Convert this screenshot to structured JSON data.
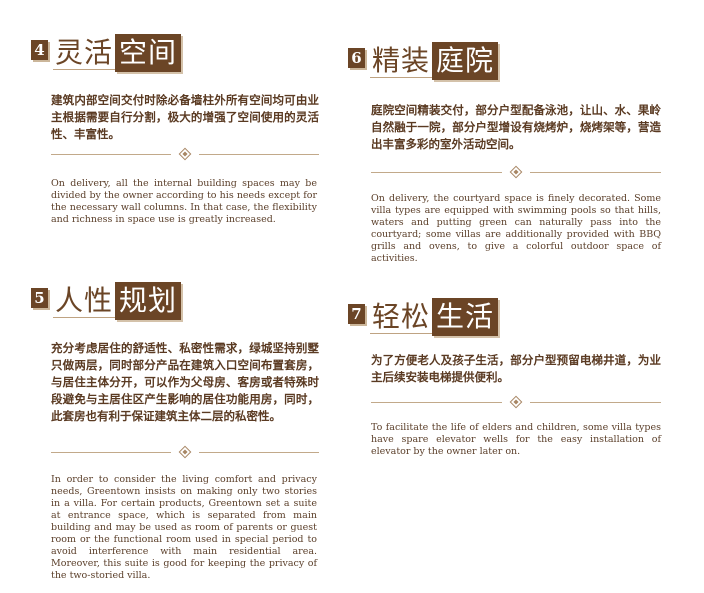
{
  "sections": [
    {
      "number": "4",
      "title_plain": "灵活",
      "title_boxed": "空间",
      "zh": "建筑内部空间交付时除必备墙柱外所有空间均可由业主根据需要自行分割，极大的增强了空间使用的灵活性、丰富性。",
      "en": "On delivery, all the internal building spaces may be divided by the owner according to his needs except for the necessary wall columns. In that case, the flexibility and richness in space use is greatly increased."
    },
    {
      "number": "6",
      "title_plain": "精装",
      "title_boxed": "庭院",
      "zh": "庭院空间精装交付，部分户型配备泳池，让山、水、果岭自然融于一院，部分户型增设有烧烤炉，烧烤架等，营造出丰富多彩的室外活动空间。",
      "en": "On delivery, the courtyard space is finely decorated. Some villa types are equipped with swimming pools so that hills, waters and putting green can naturally pass into the courtyard; some villas are additionally provided with BBQ grills and ovens, to give a colorful outdoor space of activities."
    },
    {
      "number": "5",
      "title_plain": "人性",
      "title_boxed": "规划",
      "zh": "充分考虑居住的舒适性、私密性需求，绿城坚持别墅只做两层，同时部分产品在建筑入口空间布置套房，与居住主体分开，可以作为父母房、客房或者特殊时段避免与主居住区产生影响的居住功能用房，同时，此套房也有利于保证建筑主体二层的私密性。",
      "en": "In order to consider the living comfort and privacy needs, Greentown insists on making only two stories in a villa. For certain products, Greentown set a suite at entrance space, which is separated from main building and may be used as room of parents or guest room or the functional room used in special period to avoid interference with main residential area. Moreover, this suite is good for keeping the privacy of the two-storied villa."
    },
    {
      "number": "7",
      "title_plain": "轻松",
      "title_boxed": "生活",
      "zh": "为了方便老人及孩子生活，部分户型预留电梯井道，为业主后续安装电梯提供便利。",
      "en": "To facilitate the life of elders and children, some villa types have spare elevator wells for the easy installation of elevator by the owner later on."
    }
  ],
  "colors": {
    "accent": "#6b4526",
    "text": "#5a3a22",
    "rule": "#c2a98a"
  },
  "ornament_icon": "diamond-ornament-icon"
}
